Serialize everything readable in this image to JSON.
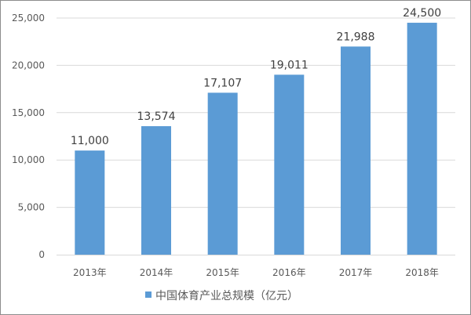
{
  "chart_data": {
    "type": "bar",
    "categories": [
      "2013年",
      "2014年",
      "2015年",
      "2016年",
      "2017年",
      "2018年"
    ],
    "series": [
      {
        "name": "中国体育产业总规模（亿元）",
        "values": [
          11000,
          13574,
          17107,
          19011,
          21988,
          24500
        ],
        "color": "#5b9bd5"
      }
    ],
    "data_labels": [
      "11,000",
      "13,574",
      "17,107",
      "19,011",
      "21,988",
      "24,500"
    ],
    "y_ticks": [
      "0",
      "5,000",
      "10,000",
      "15,000",
      "20,000",
      "25,000"
    ],
    "ylim": [
      0,
      25000
    ],
    "grid": true,
    "legend_position": "bottom",
    "title": "",
    "xlabel": "",
    "ylabel": ""
  }
}
